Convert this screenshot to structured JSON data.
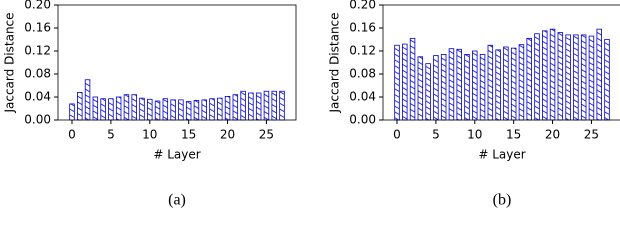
{
  "chart_data": [
    {
      "type": "bar",
      "caption": "(a)",
      "x_label": "# Layer",
      "y_label": "Jaccard Distance",
      "color": "#0000cc",
      "x": [
        0,
        1,
        2,
        3,
        4,
        5,
        6,
        7,
        8,
        9,
        10,
        11,
        12,
        13,
        14,
        15,
        16,
        17,
        18,
        19,
        20,
        21,
        22,
        23,
        24,
        25,
        26,
        27
      ],
      "values": [
        0.028,
        0.048,
        0.07,
        0.04,
        0.037,
        0.037,
        0.04,
        0.044,
        0.044,
        0.038,
        0.036,
        0.033,
        0.037,
        0.035,
        0.035,
        0.032,
        0.034,
        0.035,
        0.037,
        0.038,
        0.041,
        0.044,
        0.05,
        0.047,
        0.047,
        0.05,
        0.05,
        0.05
      ],
      "xlim": [
        -1.8,
        28.8
      ],
      "ylim": [
        0,
        0.2
      ],
      "xticks": [
        0,
        5,
        10,
        15,
        20,
        25
      ],
      "yticks": [
        {
          "value": 0,
          "label": "0.00"
        },
        {
          "value": 0.04,
          "label": "0.04"
        },
        {
          "value": 0.08,
          "label": "0.08"
        },
        {
          "value": 0.12,
          "label": "0.12"
        },
        {
          "value": 0.16,
          "label": "0.16"
        },
        {
          "value": 0.2,
          "label": "0.20"
        }
      ]
    },
    {
      "type": "bar",
      "caption": "(b)",
      "x_label": "# Layer",
      "y_label": "Jaccard Distance",
      "color": "#0000cc",
      "x": [
        0,
        1,
        2,
        3,
        4,
        5,
        6,
        7,
        8,
        9,
        10,
        11,
        12,
        13,
        14,
        15,
        16,
        17,
        18,
        19,
        20,
        21,
        22,
        23,
        24,
        25,
        26,
        27
      ],
      "values": [
        0.13,
        0.132,
        0.142,
        0.11,
        0.098,
        0.112,
        0.114,
        0.124,
        0.123,
        0.114,
        0.12,
        0.114,
        0.13,
        0.122,
        0.127,
        0.125,
        0.131,
        0.142,
        0.15,
        0.155,
        0.158,
        0.152,
        0.148,
        0.148,
        0.148,
        0.146,
        0.158,
        0.14
      ],
      "xlim": [
        -1.8,
        28.8
      ],
      "ylim": [
        0,
        0.2
      ],
      "xticks": [
        0,
        5,
        10,
        15,
        20,
        25
      ],
      "yticks": [
        {
          "value": 0,
          "label": "0.00"
        },
        {
          "value": 0.04,
          "label": "0.04"
        },
        {
          "value": 0.08,
          "label": "0.08"
        },
        {
          "value": 0.12,
          "label": "0.12"
        },
        {
          "value": 0.16,
          "label": "0.16"
        },
        {
          "value": 0.2,
          "label": "0.20"
        }
      ]
    }
  ]
}
